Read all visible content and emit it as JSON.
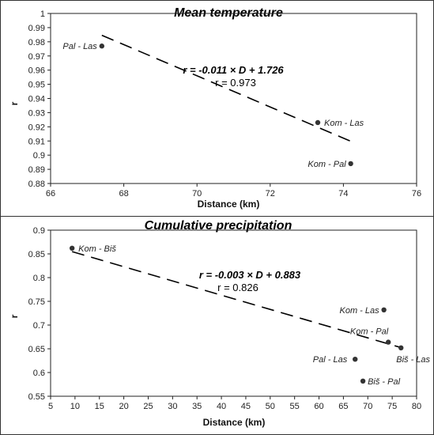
{
  "chart_data": [
    {
      "type": "scatter",
      "title": "Mean temperature",
      "xlabel": "Distance (km)",
      "ylabel": "r",
      "xlim": [
        66,
        76
      ],
      "ylim": [
        0.88,
        1.0
      ],
      "xticks": [
        "66",
        "68",
        "70",
        "72",
        "74",
        "76"
      ],
      "yticks": [
        "0.88",
        "0.89",
        "0.9",
        "0.91",
        "0.92",
        "0.93",
        "0.94",
        "0.95",
        "0.96",
        "0.97",
        "0.98",
        "0.99",
        "1"
      ],
      "points": [
        {
          "label": "Pal - Las",
          "x": 67.4,
          "y": 0.977
        },
        {
          "label": "Kom - Las",
          "x": 73.3,
          "y": 0.923
        },
        {
          "label": "Kom - Pal",
          "x": 74.2,
          "y": 0.894
        }
      ],
      "trendline": {
        "equation": "r = -0.011 × D + 1.726",
        "r_text": "r = 0.973",
        "slope": -0.011,
        "intercept": 1.726,
        "x_range": [
          67.4,
          74.2
        ]
      },
      "grid": false,
      "legend": "none"
    },
    {
      "type": "scatter",
      "title": "Cumulative precipitation",
      "xlabel": "Distance (km)",
      "ylabel": "r",
      "xlim": [
        5,
        80
      ],
      "ylim": [
        0.55,
        0.9
      ],
      "xticks": [
        "5",
        "10",
        "15",
        "20",
        "25",
        "30",
        "35",
        "40",
        "45",
        "50",
        "55",
        "60",
        "65",
        "70",
        "75",
        "80"
      ],
      "yticks": [
        "0.55",
        "0.6",
        "0.65",
        "0.7",
        "0.75",
        "0.8",
        "0.85",
        "0.9"
      ],
      "points": [
        {
          "label": "Kom - Biš",
          "x": 9.4,
          "y": 0.862
        },
        {
          "label": "Kom - Las",
          "x": 73.3,
          "y": 0.732
        },
        {
          "label": "Kom - Pal",
          "x": 74.2,
          "y": 0.664
        },
        {
          "label": "Biš - Las",
          "x": 76.8,
          "y": 0.652
        },
        {
          "label": "Pal - Las",
          "x": 67.4,
          "y": 0.628
        },
        {
          "label": "Biš - Pal",
          "x": 69.0,
          "y": 0.582
        }
      ],
      "trendline": {
        "equation": "r = -0.003 × D + 0.883",
        "r_text": "r = 0.826",
        "slope": -0.003,
        "intercept": 0.883,
        "x_range": [
          9.4,
          76.8
        ]
      },
      "grid": false,
      "legend": "none"
    }
  ]
}
